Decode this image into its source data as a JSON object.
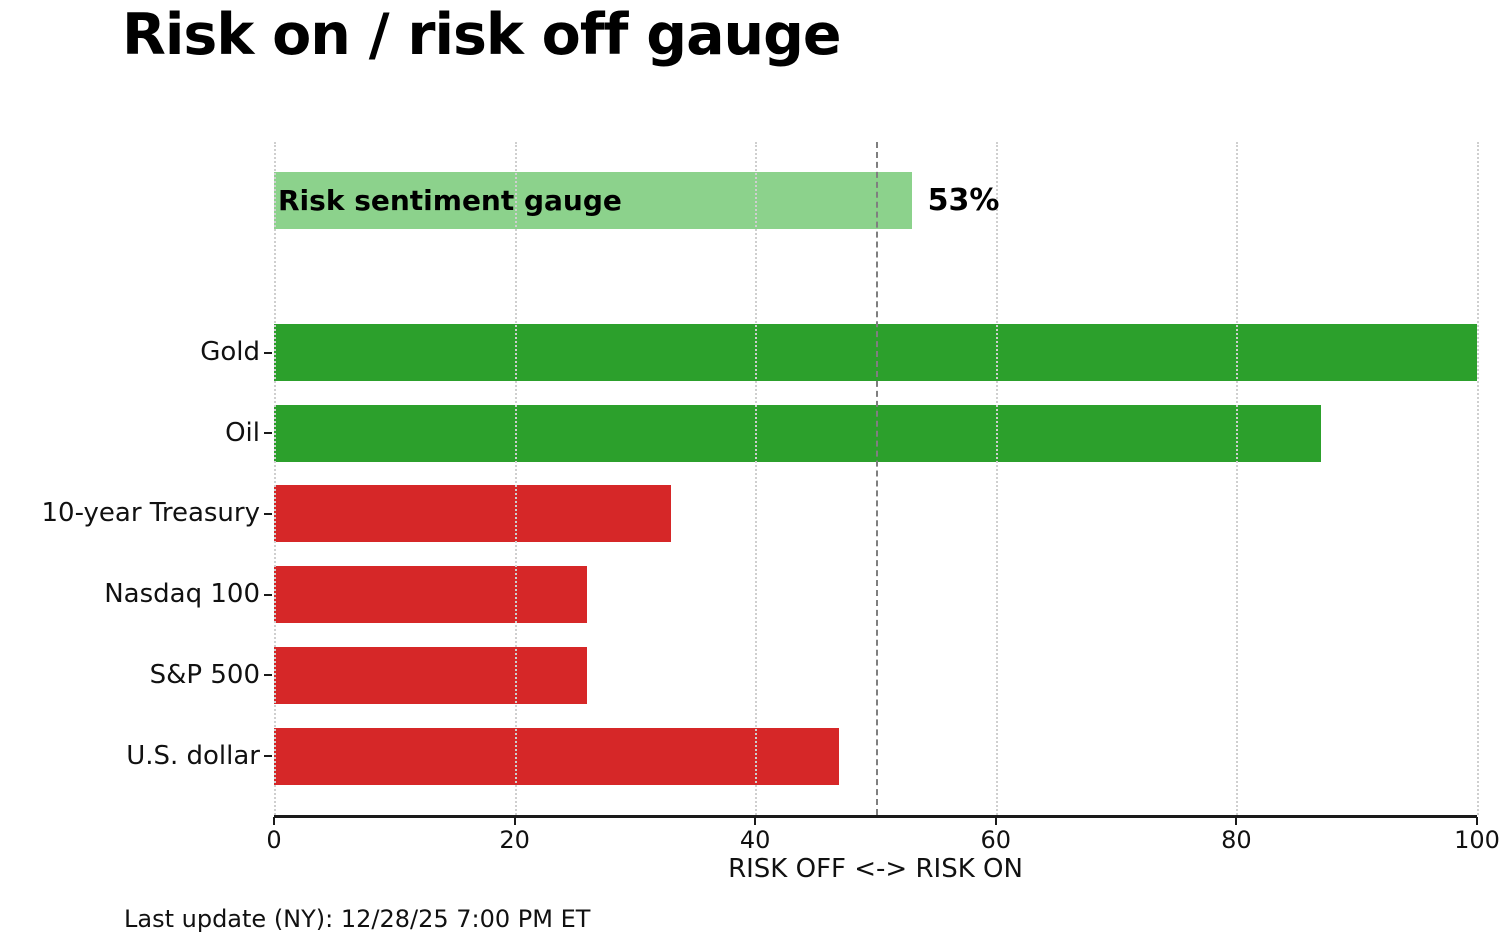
{
  "title": "Risk on / risk off gauge",
  "footer": "Last update (NY): 12/28/25 7:00 PM ET",
  "chart_data": {
    "type": "bar",
    "orientation": "horizontal",
    "title": "Risk on / risk off gauge",
    "xlabel": "RISK OFF <-> RISK ON",
    "xlim": [
      0,
      100
    ],
    "x_ticks": [
      0,
      20,
      40,
      60,
      80,
      100
    ],
    "grid": "vertical dotted gridlines at x ticks, drawn over bars",
    "reference_line": {
      "x": 50,
      "style": "dashed",
      "color": "#7f7f7f"
    },
    "legend": "none",
    "gauge_row": {
      "label": "Risk sentiment gauge",
      "value": 53,
      "value_label": "53%",
      "color": "#8cd28c"
    },
    "categories": [
      "Gold",
      "Oil",
      "10-year Treasury",
      "Nasdaq 100",
      "S&P 500",
      "U.S. dollar"
    ],
    "values": [
      100,
      87,
      33,
      26,
      26,
      47
    ],
    "bar_colors": [
      "#2ca02c",
      "#2ca02c",
      "#d62728",
      "#d62728",
      "#d62728",
      "#d62728"
    ],
    "palette": {
      "risk_on_green": "#2ca02c",
      "risk_off_red": "#d62728",
      "gauge_light_green": "#8cd28c",
      "reference_line_gray": "#7f7f7f",
      "gridline_gray": "#cfcfcf",
      "axis_dark": "#1a1a1a"
    }
  }
}
